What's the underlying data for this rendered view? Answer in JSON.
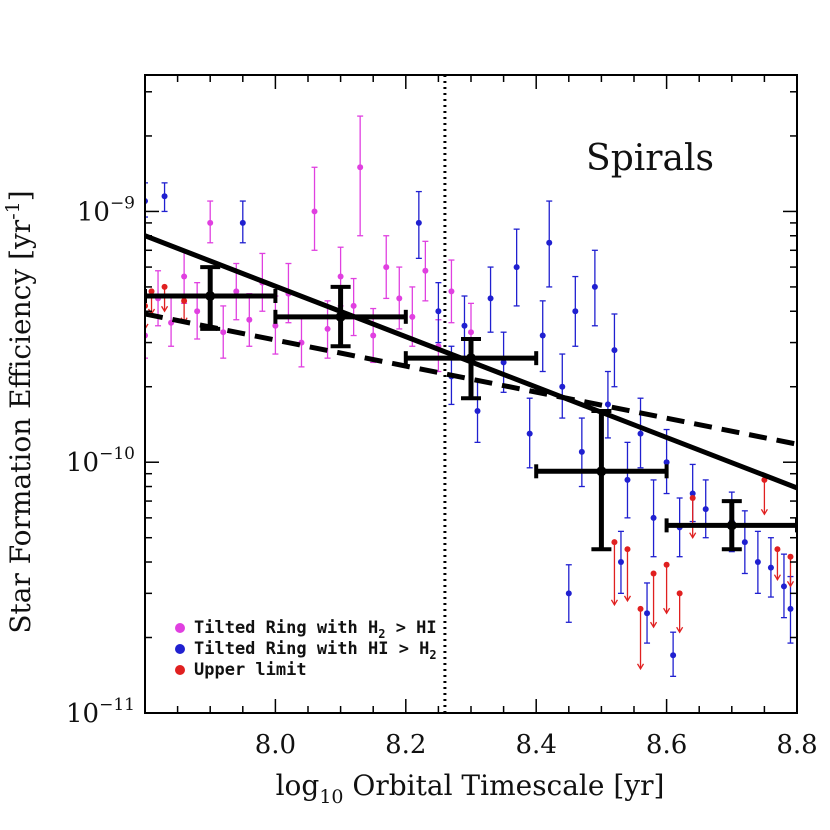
{
  "chart_data": {
    "type": "scatter",
    "title": "",
    "annotation": "Spirals",
    "xlabel": {
      "prefix": "log",
      "sub": "10",
      "rest": " Orbital Timescale [yr]"
    },
    "ylabel": {
      "base": "Star Formation Efficiency [yr",
      "sup": "-1",
      "close": "]"
    },
    "xscale": "linear",
    "yscale": "log",
    "xlim": [
      7.8,
      8.8
    ],
    "ylim": [
      1e-11,
      3.5e-09
    ],
    "x_ticks": [
      {
        "value": 8.0,
        "label": "8.0"
      },
      {
        "value": 8.2,
        "label": "8.2"
      },
      {
        "value": 8.4,
        "label": "8.4"
      },
      {
        "value": 8.6,
        "label": "8.6"
      },
      {
        "value": 8.8,
        "label": "8.8"
      }
    ],
    "y_ticks": [
      {
        "value": 1e-09,
        "base": "10",
        "exp": "-9"
      },
      {
        "value": 1e-10,
        "base": "10",
        "exp": "-10"
      },
      {
        "value": 1e-11,
        "base": "10",
        "exp": "-11"
      }
    ],
    "vline": {
      "x": 8.26,
      "style": "dotted"
    },
    "fits": [
      {
        "name": "solid fit",
        "style": "solid",
        "x": [
          7.8,
          8.8
        ],
        "y": [
          8e-10,
          7.9e-11
        ]
      },
      {
        "name": "dashed fit",
        "style": "dashed",
        "x": [
          7.8,
          8.8
        ],
        "y": [
          3.9e-10,
          1.18e-10
        ]
      }
    ],
    "legend": {
      "position": "bottom-left",
      "entries": [
        {
          "label_parts": [
            "Tilted Ring with H",
            "2",
            " > HI"
          ],
          "color": "#e040e0"
        },
        {
          "label_parts": [
            "Tilted Ring with HI > H",
            "2",
            ""
          ],
          "color": "#2020d0"
        },
        {
          "label_parts": [
            "Upper limit",
            "",
            ""
          ],
          "color": "#e02020"
        }
      ]
    },
    "binned": {
      "name": "binned medians",
      "color": "#000000",
      "points": [
        {
          "x": 7.9,
          "y": 4.6e-10,
          "xlo": 7.8,
          "xhi": 8.0,
          "ylo": 3.4e-10,
          "yhi": 6e-10
        },
        {
          "x": 8.1,
          "y": 3.8e-10,
          "xlo": 8.0,
          "xhi": 8.2,
          "ylo": 2.9e-10,
          "yhi": 5e-10
        },
        {
          "x": 8.3,
          "y": 2.6e-10,
          "xlo": 8.2,
          "xhi": 8.4,
          "ylo": 1.8e-10,
          "yhi": 3.1e-10
        },
        {
          "x": 8.5,
          "y": 9.2e-11,
          "xlo": 8.4,
          "xhi": 8.6,
          "ylo": 4.5e-11,
          "yhi": 1.6e-10
        },
        {
          "x": 8.7,
          "y": 5.6e-11,
          "xlo": 8.6,
          "xhi": 8.8,
          "ylo": 4.5e-11,
          "yhi": 7e-11
        }
      ]
    },
    "series": [
      {
        "name": "Tilted Ring with H2 > HI",
        "color": "#e040e0",
        "points": [
          {
            "x": 7.8,
            "y": 3.2e-10,
            "ylo": 2.6e-10,
            "yhi": 4e-10
          },
          {
            "x": 7.82,
            "y": 4.5e-10,
            "ylo": 3.5e-10,
            "yhi": 5.8e-10
          },
          {
            "x": 7.84,
            "y": 3.6e-10,
            "ylo": 2.9e-10,
            "yhi": 4.6e-10
          },
          {
            "x": 7.86,
            "y": 5.5e-10,
            "ylo": 4.3e-10,
            "yhi": 7e-10
          },
          {
            "x": 7.88,
            "y": 4e-10,
            "ylo": 3.1e-10,
            "yhi": 5.2e-10
          },
          {
            "x": 7.9,
            "y": 9e-10,
            "ylo": 7.5e-10,
            "yhi": 1.1e-09
          },
          {
            "x": 7.92,
            "y": 3.3e-10,
            "ylo": 2.6e-10,
            "yhi": 4.2e-10
          },
          {
            "x": 7.94,
            "y": 4.8e-10,
            "ylo": 3.7e-10,
            "yhi": 6.2e-10
          },
          {
            "x": 7.96,
            "y": 3.7e-10,
            "ylo": 2.9e-10,
            "yhi": 4.7e-10
          },
          {
            "x": 7.98,
            "y": 5.2e-10,
            "ylo": 4e-10,
            "yhi": 6.8e-10
          },
          {
            "x": 8.0,
            "y": 3.5e-10,
            "ylo": 2.7e-10,
            "yhi": 4.6e-10
          },
          {
            "x": 8.02,
            "y": 4.7e-10,
            "ylo": 3.6e-10,
            "yhi": 6.2e-10
          },
          {
            "x": 8.04,
            "y": 3e-10,
            "ylo": 2.4e-10,
            "yhi": 3.8e-10
          },
          {
            "x": 8.06,
            "y": 1e-09,
            "ylo": 7e-10,
            "yhi": 1.5e-09
          },
          {
            "x": 8.08,
            "y": 3.4e-10,
            "ylo": 2.6e-10,
            "yhi": 4.4e-10
          },
          {
            "x": 8.1,
            "y": 5.5e-10,
            "ylo": 4.2e-10,
            "yhi": 7.2e-10
          },
          {
            "x": 8.12,
            "y": 4.2e-10,
            "ylo": 3.2e-10,
            "yhi": 5.4e-10
          },
          {
            "x": 8.13,
            "y": 1.5e-09,
            "ylo": 8e-10,
            "yhi": 2.4e-09
          },
          {
            "x": 8.15,
            "y": 3.2e-10,
            "ylo": 2.5e-10,
            "yhi": 4.1e-10
          },
          {
            "x": 8.17,
            "y": 6e-10,
            "ylo": 4.5e-10,
            "yhi": 8e-10
          },
          {
            "x": 8.19,
            "y": 4.5e-10,
            "ylo": 3.4e-10,
            "yhi": 6e-10
          },
          {
            "x": 8.21,
            "y": 3.8e-10,
            "ylo": 2.9e-10,
            "yhi": 5e-10
          },
          {
            "x": 8.23,
            "y": 5.8e-10,
            "ylo": 4.4e-10,
            "yhi": 7.6e-10
          },
          {
            "x": 8.25,
            "y": 2.9e-10,
            "ylo": 2.3e-10,
            "yhi": 3.7e-10
          },
          {
            "x": 8.27,
            "y": 4.8e-10,
            "ylo": 3.6e-10,
            "yhi": 6.4e-10
          },
          {
            "x": 8.3,
            "y": 3.3e-10,
            "ylo": 2.5e-10,
            "yhi": 4.3e-10
          }
        ]
      },
      {
        "name": "Tilted Ring with HI > H2",
        "color": "#2020d0",
        "points": [
          {
            "x": 7.8,
            "y": 1.1e-09,
            "ylo": 9.5e-10,
            "yhi": 1.3e-09
          },
          {
            "x": 7.83,
            "y": 1.15e-09,
            "ylo": 1e-09,
            "yhi": 1.3e-09
          },
          {
            "x": 7.95,
            "y": 9e-10,
            "ylo": 7.5e-10,
            "yhi": 1.1e-09
          },
          {
            "x": 8.22,
            "y": 9e-10,
            "ylo": 6.5e-10,
            "yhi": 1.2e-09
          },
          {
            "x": 8.25,
            "y": 4e-10,
            "ylo": 3e-10,
            "yhi": 5.2e-10
          },
          {
            "x": 8.27,
            "y": 2.2e-10,
            "ylo": 1.7e-10,
            "yhi": 2.9e-10
          },
          {
            "x": 8.29,
            "y": 3.5e-10,
            "ylo": 2.6e-10,
            "yhi": 4.6e-10
          },
          {
            "x": 8.31,
            "y": 1.6e-10,
            "ylo": 1.2e-10,
            "yhi": 2.1e-10
          },
          {
            "x": 8.33,
            "y": 4.5e-10,
            "ylo": 3.3e-10,
            "yhi": 6e-10
          },
          {
            "x": 8.35,
            "y": 2.5e-10,
            "ylo": 1.9e-10,
            "yhi": 3.3e-10
          },
          {
            "x": 8.37,
            "y": 6e-10,
            "ylo": 4.2e-10,
            "yhi": 8.5e-10
          },
          {
            "x": 8.39,
            "y": 1.3e-10,
            "ylo": 9.5e-11,
            "yhi": 1.8e-10
          },
          {
            "x": 8.41,
            "y": 3.2e-10,
            "ylo": 2.3e-10,
            "yhi": 4.4e-10
          },
          {
            "x": 8.42,
            "y": 7.5e-10,
            "ylo": 5e-10,
            "yhi": 1.1e-09
          },
          {
            "x": 8.44,
            "y": 2e-10,
            "ylo": 1.5e-10,
            "yhi": 2.7e-10
          },
          {
            "x": 8.46,
            "y": 4e-10,
            "ylo": 2.9e-10,
            "yhi": 5.5e-10
          },
          {
            "x": 8.47,
            "y": 1.1e-10,
            "ylo": 8e-11,
            "yhi": 1.5e-10
          },
          {
            "x": 8.49,
            "y": 5e-10,
            "ylo": 3.5e-10,
            "yhi": 7e-10
          },
          {
            "x": 8.51,
            "y": 1.7e-10,
            "ylo": 1.25e-10,
            "yhi": 2.3e-10
          },
          {
            "x": 8.52,
            "y": 2.8e-10,
            "ylo": 2e-10,
            "yhi": 3.9e-10
          },
          {
            "x": 8.54,
            "y": 8.5e-11,
            "ylo": 6e-11,
            "yhi": 1.2e-10
          },
          {
            "x": 8.56,
            "y": 1.3e-10,
            "ylo": 9.5e-11,
            "yhi": 1.8e-10
          },
          {
            "x": 8.58,
            "y": 6e-11,
            "ylo": 4.2e-11,
            "yhi": 8.5e-11
          },
          {
            "x": 8.6,
            "y": 1e-10,
            "ylo": 7.5e-11,
            "yhi": 1.35e-10
          },
          {
            "x": 8.62,
            "y": 5.5e-11,
            "ylo": 4.2e-11,
            "yhi": 7.2e-11
          },
          {
            "x": 8.64,
            "y": 7.5e-11,
            "ylo": 5.8e-11,
            "yhi": 9.8e-11
          },
          {
            "x": 8.66,
            "y": 6.5e-11,
            "ylo": 5e-11,
            "yhi": 8.5e-11
          },
          {
            "x": 8.7,
            "y": 5.8e-11,
            "ylo": 4.4e-11,
            "yhi": 7.6e-11
          },
          {
            "x": 8.72,
            "y": 4.8e-11,
            "ylo": 3.6e-11,
            "yhi": 6.4e-11
          },
          {
            "x": 8.74,
            "y": 4e-11,
            "ylo": 3e-11,
            "yhi": 5.3e-11
          },
          {
            "x": 8.76,
            "y": 3.8e-11,
            "ylo": 2.9e-11,
            "yhi": 5e-11
          },
          {
            "x": 8.78,
            "y": 3.2e-11,
            "ylo": 2.4e-11,
            "yhi": 4.3e-11
          },
          {
            "x": 8.79,
            "y": 2.6e-11,
            "ylo": 1.9e-11,
            "yhi": 3.5e-11
          },
          {
            "x": 8.53,
            "y": 4e-11,
            "ylo": 3e-11,
            "yhi": 5.3e-11
          },
          {
            "x": 8.57,
            "y": 2.5e-11,
            "ylo": 1.9e-11,
            "yhi": 3.3e-11
          },
          {
            "x": 8.61,
            "y": 1.7e-11,
            "ylo": 1.4e-11,
            "yhi": 2.1e-11
          },
          {
            "x": 8.45,
            "y": 3e-11,
            "ylo": 2.3e-11,
            "yhi": 3.9e-11
          }
        ]
      },
      {
        "name": "Upper limit",
        "color": "#e02020",
        "upper_limit": true,
        "points": [
          {
            "x": 7.8,
            "y": 4.2e-10,
            "ylo": 3.4e-10
          },
          {
            "x": 7.81,
            "y": 4.8e-10,
            "ylo": 3.9e-10
          },
          {
            "x": 7.83,
            "y": 5e-10,
            "ylo": 4e-10
          },
          {
            "x": 7.86,
            "y": 4.4e-10,
            "ylo": 3.6e-10
          },
          {
            "x": 8.52,
            "y": 4.8e-11,
            "ylo": 2.7e-11
          },
          {
            "x": 8.54,
            "y": 4.5e-11,
            "ylo": 2.8e-11
          },
          {
            "x": 8.56,
            "y": 2.6e-11,
            "ylo": 1.5e-11
          },
          {
            "x": 8.58,
            "y": 3.6e-11,
            "ylo": 2.2e-11
          },
          {
            "x": 8.6,
            "y": 3.9e-11,
            "ylo": 2.5e-11
          },
          {
            "x": 8.62,
            "y": 3e-11,
            "ylo": 2.1e-11
          },
          {
            "x": 8.64,
            "y": 7.2e-11,
            "ylo": 5e-11
          },
          {
            "x": 8.75,
            "y": 8.5e-11,
            "ylo": 6.2e-11
          },
          {
            "x": 8.77,
            "y": 4.5e-11,
            "ylo": 3.4e-11
          },
          {
            "x": 8.79,
            "y": 4.2e-11,
            "ylo": 3.2e-11
          }
        ]
      }
    ]
  }
}
